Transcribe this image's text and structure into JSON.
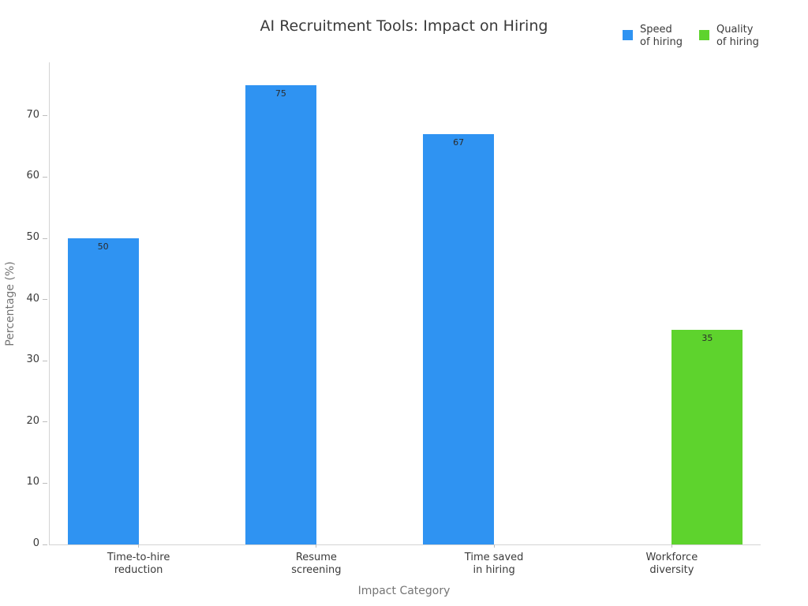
{
  "chart_data": {
    "type": "bar",
    "title": "AI Recruitment Tools: Impact on Hiring",
    "xlabel": "Impact Category",
    "ylabel": "Percentage (%)",
    "categories": [
      "Time-to-hire\nreduction",
      "Resume\nscreening",
      "Time saved\nin hiring",
      "Workforce\ndiversity"
    ],
    "series": [
      {
        "name": "Speed of hiring",
        "legend_label": "Speed\nof hiring",
        "color": "#2f93f2",
        "values": [
          50,
          75,
          67,
          null
        ]
      },
      {
        "name": "Quality of hiring",
        "legend_label": "Quality\nof hiring",
        "color": "#5ed32d",
        "values": [
          null,
          null,
          null,
          35
        ]
      }
    ],
    "bar_value_labels_shown": true,
    "yticks": [
      0,
      10,
      20,
      30,
      40,
      50,
      60,
      70
    ],
    "ylim": [
      0,
      78.75
    ],
    "grid": false,
    "legend_position": "top-right"
  }
}
